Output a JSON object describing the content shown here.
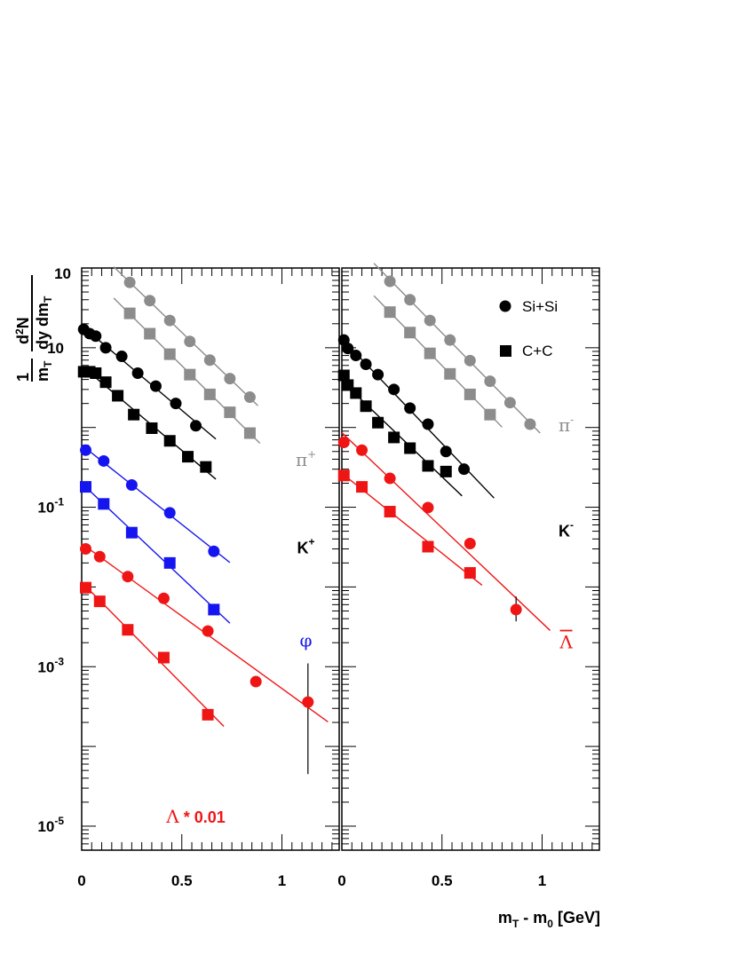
{
  "chart_data": {
    "type": "scatter",
    "xlabel": "m",
    "xlabel_sub": "T",
    "xlabel_mid": " - m",
    "xlabel_sub2": "0",
    "xlabel_tail": " [GeV]",
    "ylabel": {
      "numerator": "1",
      "denominator_m": "m",
      "denominator_sub": "T",
      "frac2_num": "d",
      "frac2_num_sup": "2",
      "frac2_num_tail": "N",
      "frac2_den": "dy dm",
      "frac2_den_sub": "T"
    },
    "yscale": "log",
    "ylim": [
      5e-06,
      100
    ],
    "xlim": [
      0,
      1.3
    ],
    "y_ticks": [
      {
        "value": 10,
        "label": "10"
      },
      {
        "value": 0.1,
        "label": "10",
        "sup": "-1"
      },
      {
        "value": 0.001,
        "label": "10",
        "sup": "-3"
      },
      {
        "value": 1e-05,
        "label": "10",
        "sup": "-5"
      }
    ],
    "y_tick_plain": [
      {
        "value": 100,
        "label": "10"
      }
    ],
    "x_ticks": [
      {
        "value": 0,
        "label": "0"
      },
      {
        "value": 0.5,
        "label": "0.5"
      },
      {
        "value": 1,
        "label": "1"
      }
    ],
    "legend": [
      {
        "label": "Si+Si",
        "marker": "circle"
      },
      {
        "label": "C+C",
        "marker": "square"
      }
    ],
    "colors": {
      "black": "#000000",
      "gray": "#8c8c8c",
      "blue": "#1515f0",
      "red": "#f01515"
    },
    "panels": [
      {
        "name": "left",
        "labels": [
          {
            "text": "π",
            "sup": "+",
            "color": "gray",
            "x": 1.12,
            "y": 0.33,
            "kind": "serif"
          },
          {
            "text": "K",
            "sup": "+",
            "color": "black",
            "x": 1.12,
            "y": 0.0265,
            "kind": "sans"
          },
          {
            "text": "φ",
            "sup": "",
            "color": "blue",
            "x": 1.12,
            "y": 0.0018,
            "kind": "serif"
          },
          {
            "text": "Λ",
            "sup": "",
            "tail": " * 0.01",
            "color": "red",
            "x": 0.57,
            "y": 1.1e-05,
            "kind": "serif"
          }
        ],
        "series": [
          {
            "name": "π+ Si+Si",
            "color": "gray",
            "marker": "circle",
            "x": [
              0.24,
              0.34,
              0.44,
              0.54,
              0.64,
              0.74,
              0.84
            ],
            "y": [
              66,
              39,
              22,
              12,
              7.0,
              4.1,
              2.4
            ],
            "fit": [
              0.16,
              0.88
            ]
          },
          {
            "name": "π+ C+C",
            "color": "gray",
            "marker": "square",
            "x": [
              0.24,
              0.34,
              0.44,
              0.54,
              0.64,
              0.74,
              0.84
            ],
            "y": [
              27,
              15,
              8.3,
              4.6,
              2.6,
              1.55,
              0.85
            ],
            "fit": [
              0.16,
              0.89
            ]
          },
          {
            "name": "K+ Si+Si",
            "color": "black",
            "marker": "circle",
            "x": [
              0.01,
              0.04,
              0.07,
              0.12,
              0.2,
              0.28,
              0.37,
              0.47,
              0.57
            ],
            "y": [
              17,
              15,
              14,
              10,
              7.8,
              4.8,
              3.3,
              2.0,
              1.05
            ],
            "fit": [
              0.0,
              0.67
            ]
          },
          {
            "name": "K+ C+C",
            "color": "black",
            "marker": "square",
            "x": [
              0.01,
              0.04,
              0.07,
              0.12,
              0.18,
              0.26,
              0.35,
              0.44,
              0.53,
              0.62
            ],
            "y": [
              5.0,
              5.0,
              4.8,
              3.7,
              2.5,
              1.45,
              0.98,
              0.68,
              0.43,
              0.32
            ],
            "fit": [
              0.0,
              0.67
            ]
          },
          {
            "name": "φ Si+Si",
            "color": "blue",
            "marker": "circle",
            "x": [
              0.02,
              0.11,
              0.25,
              0.44,
              0.66
            ],
            "y": [
              0.52,
              0.38,
              0.19,
              0.085,
              0.028
            ],
            "fit": [
              0.0,
              0.74
            ]
          },
          {
            "name": "φ C+C",
            "color": "blue",
            "marker": "square",
            "x": [
              0.02,
              0.11,
              0.25,
              0.44,
              0.66
            ],
            "y": [
              0.18,
              0.11,
              0.048,
              0.02,
              0.0052
            ],
            "fit": [
              0.0,
              0.74
            ]
          },
          {
            "name": "Λ Si+Si",
            "color": "red",
            "marker": "circle",
            "x": [
              0.02,
              0.09,
              0.23,
              0.41,
              0.63,
              0.87,
              1.13
            ],
            "y": [
              0.03,
              0.024,
              0.0135,
              0.0072,
              0.0028,
              0.00065,
              0.00036
            ],
            "fit": [
              0.0,
              1.23
            ]
          },
          {
            "name": "Λ C+C",
            "color": "red",
            "marker": "square",
            "x": [
              0.02,
              0.09,
              0.23,
              0.41,
              0.63
            ],
            "y": [
              0.0098,
              0.0066,
              0.0029,
              0.0013,
              0.00025
            ],
            "fit": [
              0.0,
              0.71
            ]
          }
        ]
      },
      {
        "name": "right",
        "labels": [
          {
            "text": "π",
            "sup": "-",
            "color": "gray",
            "x": 1.12,
            "y": 0.9,
            "kind": "serif"
          },
          {
            "text": "K",
            "sup": "-",
            "color": "black",
            "x": 1.12,
            "y": 0.043,
            "kind": "sans"
          },
          {
            "text": "Λ",
            "sup": "",
            "overline": true,
            "color": "red",
            "x": 1.12,
            "y": 0.0017,
            "kind": "serif"
          }
        ],
        "series": [
          {
            "name": "π- Si+Si",
            "color": "gray",
            "marker": "circle",
            "x": [
              0.24,
              0.34,
              0.44,
              0.54,
              0.64,
              0.74,
              0.84,
              0.94
            ],
            "y": [
              68,
              40,
              22,
              12.5,
              6.9,
              3.8,
              2.05,
              1.1
            ],
            "fit": [
              0.16,
              0.99
            ]
          },
          {
            "name": "π- C+C",
            "color": "gray",
            "marker": "square",
            "x": [
              0.24,
              0.34,
              0.44,
              0.54,
              0.64,
              0.74
            ],
            "y": [
              28,
              15.5,
              8.5,
              4.7,
              2.6,
              1.45
            ],
            "fit": [
              0.16,
              0.8
            ]
          },
          {
            "name": "K- Si+Si",
            "color": "black",
            "marker": "circle",
            "x": [
              0.01,
              0.03,
              0.07,
              0.12,
              0.18,
              0.26,
              0.34,
              0.43,
              0.52,
              0.61
            ],
            "y": [
              12.5,
              9.8,
              8.0,
              6.2,
              4.6,
              3.0,
              1.75,
              1.1,
              0.5,
              0.3
            ],
            "fit": [
              0.0,
              0.76
            ]
          },
          {
            "name": "K- C+C",
            "color": "black",
            "marker": "square",
            "x": [
              0.01,
              0.03,
              0.07,
              0.12,
              0.18,
              0.26,
              0.34,
              0.43,
              0.52
            ],
            "y": [
              4.5,
              3.4,
              2.7,
              1.85,
              1.15,
              0.75,
              0.55,
              0.33,
              0.28
            ],
            "fit": [
              0.0,
              0.6
            ]
          },
          {
            "name": "Λ̄ Si+Si",
            "color": "red",
            "marker": "circle",
            "x": [
              0.01,
              0.1,
              0.24,
              0.43,
              0.64,
              0.87
            ],
            "y": [
              0.65,
              0.52,
              0.23,
              0.099,
              0.035,
              0.0052
            ],
            "fit": [
              0.0,
              1.04
            ]
          },
          {
            "name": "Λ̄ C+C",
            "color": "red",
            "marker": "square",
            "x": [
              0.01,
              0.1,
              0.24,
              0.43,
              0.64
            ],
            "y": [
              0.25,
              0.18,
              0.088,
              0.032,
              0.015
            ],
            "fit": [
              0.0,
              0.7
            ]
          }
        ]
      }
    ]
  }
}
